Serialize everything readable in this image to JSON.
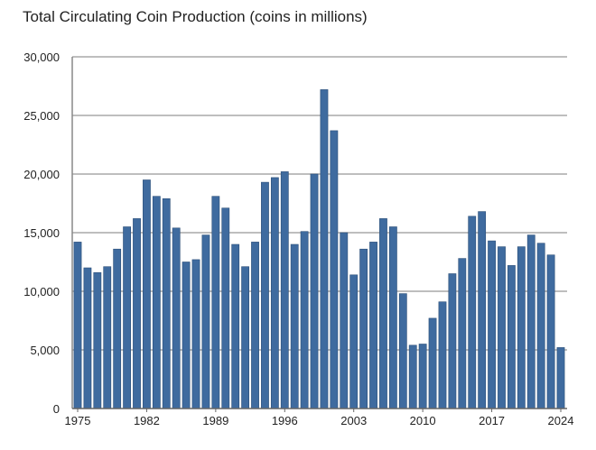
{
  "chart_data": {
    "type": "bar",
    "title": "Total Circulating Coin Production (coins in millions)",
    "xlabel": "",
    "ylabel": "",
    "categories": [
      1975,
      1976,
      1977,
      1978,
      1979,
      1980,
      1981,
      1982,
      1983,
      1984,
      1985,
      1986,
      1987,
      1988,
      1989,
      1990,
      1991,
      1992,
      1993,
      1994,
      1995,
      1996,
      1997,
      1998,
      1999,
      2000,
      2001,
      2002,
      2003,
      2004,
      2005,
      2006,
      2007,
      2008,
      2009,
      2010,
      2011,
      2012,
      2013,
      2014,
      2015,
      2016,
      2017,
      2018,
      2019,
      2020,
      2021,
      2022,
      2023,
      2024
    ],
    "values": [
      14200,
      12000,
      11600,
      12100,
      13600,
      15500,
      16200,
      19500,
      18100,
      17900,
      15400,
      12500,
      12700,
      14800,
      18100,
      17100,
      14000,
      12100,
      14200,
      19300,
      19700,
      20200,
      14000,
      15100,
      20000,
      27200,
      23700,
      15000,
      11400,
      13600,
      14200,
      16200,
      15500,
      9800,
      5400,
      5500,
      7700,
      9100,
      11500,
      12800,
      16400,
      16800,
      14300,
      13800,
      12200,
      13800,
      14800,
      14100,
      13100,
      5200
    ],
    "ylim": [
      0,
      30000
    ],
    "yticks": [
      "0",
      "5,000",
      "10,000",
      "15,000",
      "20,000",
      "25,000",
      "30,000"
    ],
    "xticks": [
      "1975",
      "1982",
      "1989",
      "1996",
      "2003",
      "2010",
      "2017",
      "2024"
    ],
    "grid": "horizontal",
    "bar_color": "#3f6b9f",
    "bar_edge_color": "#2c4f78"
  }
}
